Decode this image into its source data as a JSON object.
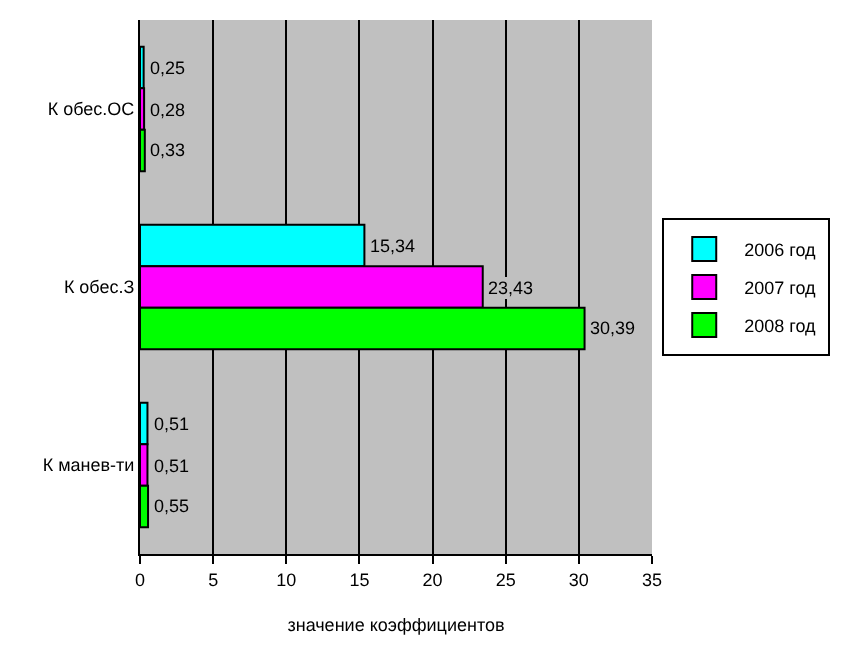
{
  "chart_data": {
    "type": "bar",
    "orientation": "horizontal",
    "xlabel": "значение коэффициентов",
    "categories": [
      "К обес.ОС",
      "К обес.З",
      "К манев-ти"
    ],
    "series": [
      {
        "name": "2006 год",
        "color": "#00ffff",
        "values": [
          0.25,
          15.34,
          0.51
        ],
        "value_labels": [
          "0,25",
          "15,34",
          "0,51"
        ]
      },
      {
        "name": "2007 год",
        "color": "#ff00ff",
        "values": [
          0.28,
          23.43,
          0.51
        ],
        "value_labels": [
          "0,28",
          "23,43",
          "0,51"
        ]
      },
      {
        "name": "2008 год",
        "color": "#00ff00",
        "values": [
          0.33,
          30.39,
          0.55
        ],
        "value_labels": [
          "0,33",
          "30,39",
          "0,55"
        ]
      }
    ],
    "xlim": [
      0,
      35
    ],
    "xticks": [
      0,
      5,
      10,
      15,
      20,
      25,
      30,
      35
    ],
    "grid": "x",
    "legend": "right"
  }
}
